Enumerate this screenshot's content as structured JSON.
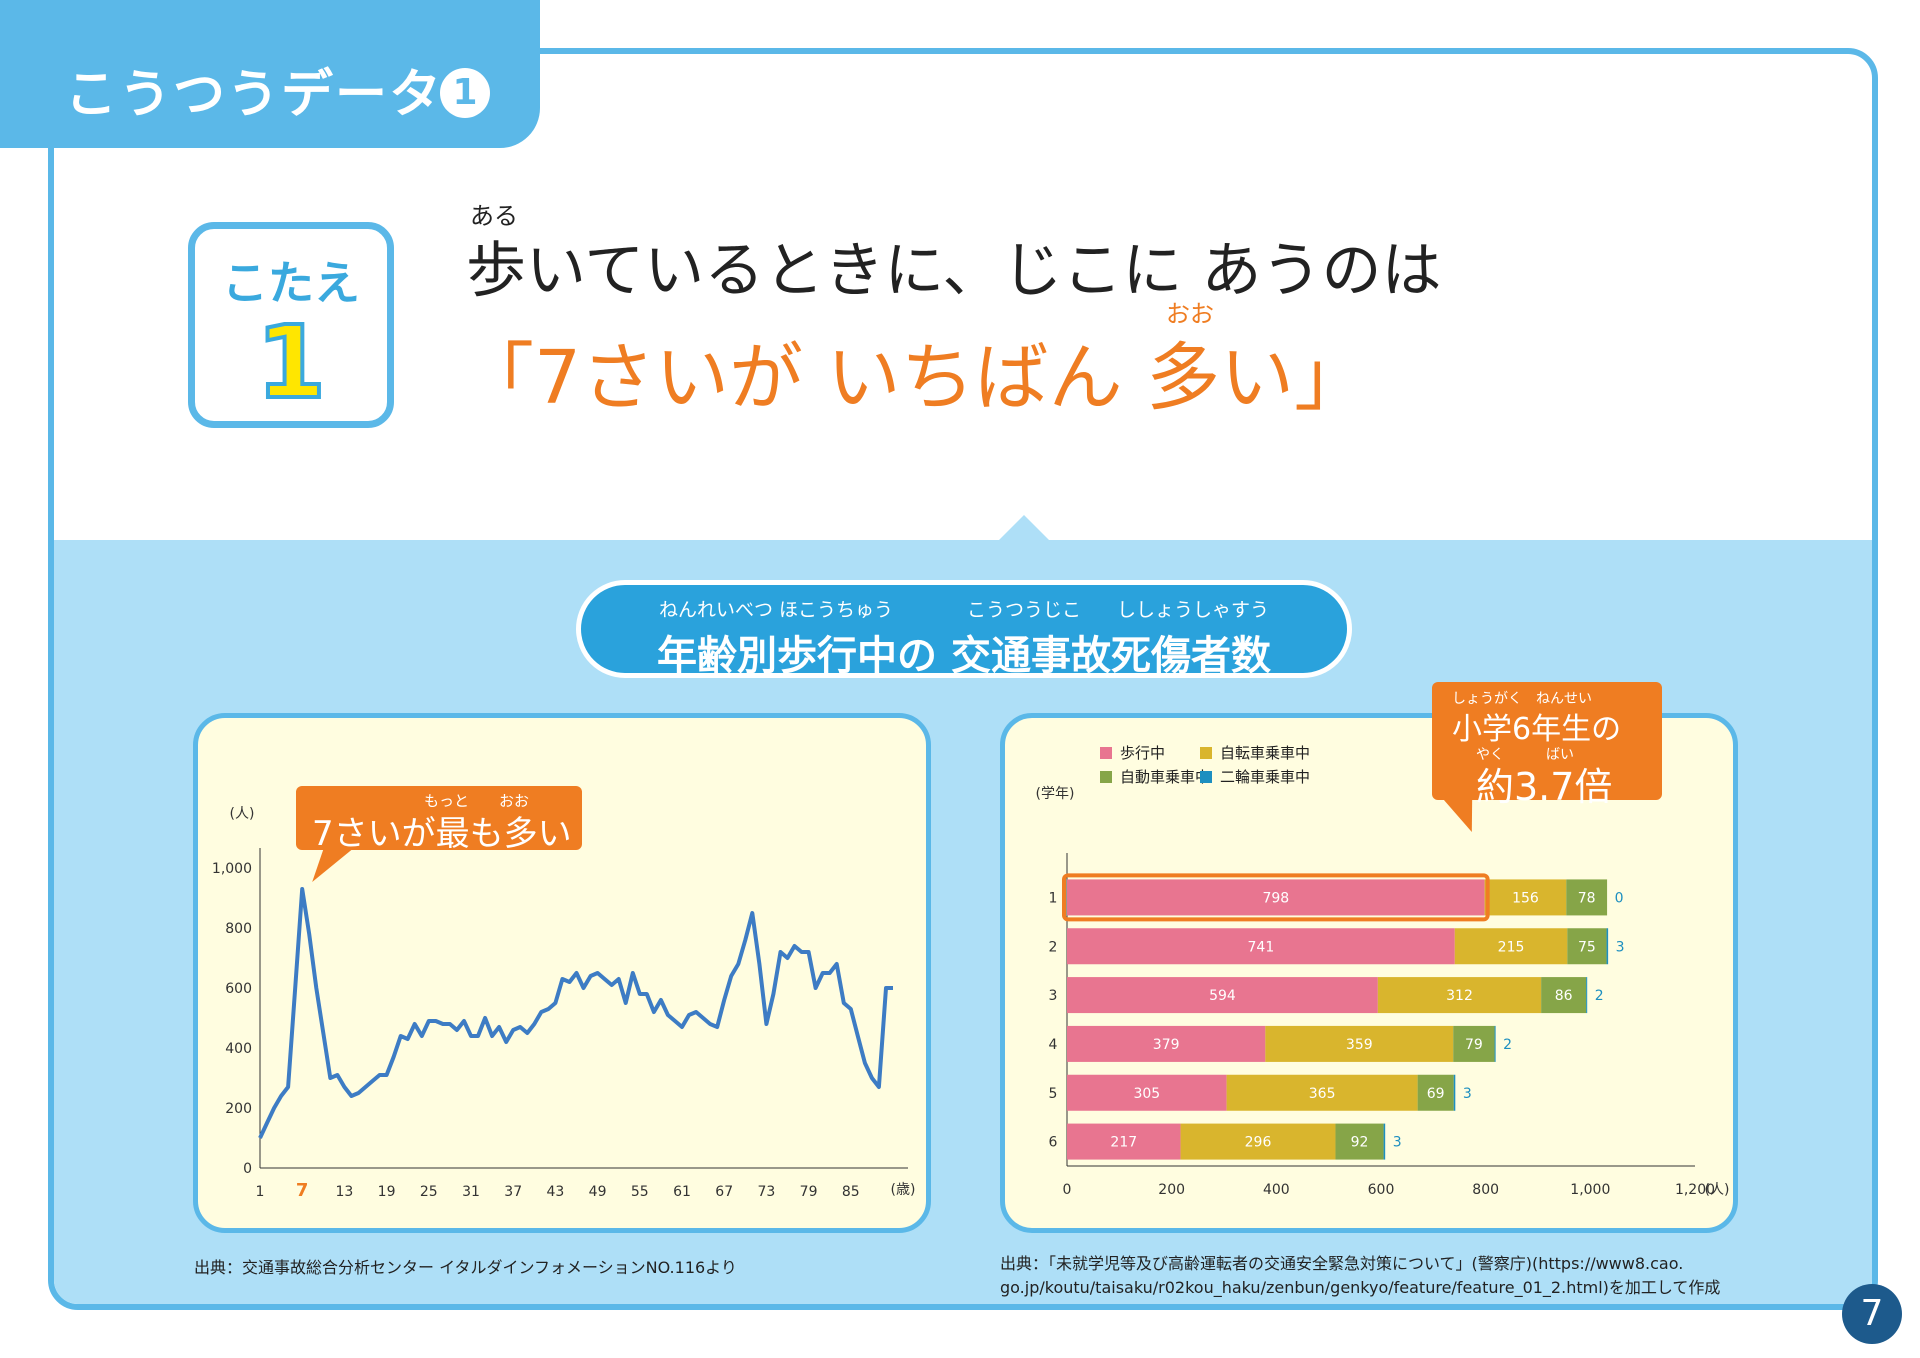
{
  "tab": {
    "title": "こうつうデータ",
    "number": "1"
  },
  "answer": {
    "label": "こたえ",
    "number": "1"
  },
  "headline": {
    "ruby_aru": "ある",
    "line1": "歩いているときに、じこに あうのは",
    "ruby_oo": "おお",
    "line2": "「7さいが いちばん 多い」"
  },
  "section": {
    "title": "年齢別歩行中の 交通事故死傷者数",
    "ruby_1": "ねんれいべつ ほこうちゅう",
    "ruby_2": "こうつうじこ",
    "ruby_3": "ししょうしゃすう"
  },
  "left_chart": {
    "callout_ruby": "もっと　　おお",
    "callout": "7さいが最も多い",
    "source": "出典：交通事故総合分析センター イタルダインフォメーションNO.116より"
  },
  "right_chart": {
    "callout_ruby1": "しょうがく　ねんせい",
    "callout_line1": "小学6年生の",
    "callout_ruby2": "やく　　　ばい",
    "callout_line2": "約3.7倍",
    "source_line1": "出典：「未就学児等及び高齢運転者の交通安全緊急対策について」(警察庁)(https://www8.cao.",
    "source_line2": "go.jp/koutu/taisaku/r02kou_haku/zenbun/genkyo/feature/feature_01_2.html)を加工して作成"
  },
  "page_number": "7",
  "chart_data": [
    {
      "type": "line",
      "ylabel": "(人)",
      "xlabel": "(歳)",
      "ylim": [
        0,
        1000
      ],
      "yticks": [
        "0",
        "200",
        "400",
        "600",
        "800",
        "1,000"
      ],
      "xticks": [
        "1",
        "7",
        "13",
        "19",
        "25",
        "31",
        "37",
        "43",
        "49",
        "55",
        "61",
        "67",
        "73",
        "79",
        "85"
      ],
      "highlight_tick": "7",
      "series_color": "#3d7cc4",
      "x": [
        1,
        2,
        3,
        4,
        5,
        6,
        7,
        8,
        9,
        10,
        11,
        12,
        13,
        14,
        15,
        16,
        17,
        18,
        19,
        20,
        21,
        22,
        23,
        24,
        25,
        26,
        27,
        28,
        29,
        30,
        31,
        32,
        33,
        34,
        35,
        36,
        37,
        38,
        39,
        40,
        41,
        42,
        43,
        44,
        45,
        46,
        47,
        48,
        49,
        50,
        51,
        52,
        53,
        54,
        55,
        56,
        57,
        58,
        59,
        60,
        61,
        62,
        63,
        64,
        65,
        66,
        67,
        68,
        69,
        70,
        71,
        72,
        73,
        74,
        75,
        76,
        77,
        78,
        79,
        80,
        81,
        82,
        83,
        84,
        85,
        86,
        87,
        88,
        89,
        90,
        91
      ],
      "y": [
        100,
        150,
        200,
        240,
        270,
        600,
        930,
        780,
        600,
        450,
        300,
        310,
        270,
        240,
        250,
        270,
        290,
        310,
        310,
        370,
        440,
        430,
        480,
        440,
        490,
        490,
        480,
        480,
        460,
        490,
        440,
        440,
        500,
        440,
        470,
        420,
        460,
        470,
        450,
        480,
        520,
        530,
        550,
        630,
        620,
        650,
        600,
        640,
        650,
        630,
        610,
        630,
        550,
        650,
        580,
        580,
        520,
        560,
        510,
        490,
        470,
        510,
        520,
        500,
        480,
        470,
        560,
        640,
        680,
        760,
        850,
        680,
        480,
        580,
        720,
        700,
        740,
        720,
        720,
        600,
        650,
        650,
        680,
        550,
        530,
        440,
        350,
        300,
        270,
        600,
        600
      ]
    },
    {
      "type": "bar",
      "orientation": "horizontal",
      "stacked": true,
      "ylabel": "(学年)",
      "xlabel": "(人)",
      "xlim": [
        0,
        1200
      ],
      "xticks": [
        "0",
        "200",
        "400",
        "600",
        "800",
        "1,000",
        "1,200"
      ],
      "categories": [
        "1",
        "2",
        "3",
        "4",
        "5",
        "6"
      ],
      "series": [
        {
          "name": "歩行中",
          "color": "#e87590",
          "values": [
            798,
            741,
            594,
            379,
            305,
            217
          ]
        },
        {
          "name": "自転車乗車中",
          "color": "#d9b52d",
          "values": [
            156,
            215,
            312,
            359,
            365,
            296
          ]
        },
        {
          "name": "自動車乗車中",
          "color": "#86a548",
          "values": [
            78,
            75,
            86,
            79,
            69,
            92
          ]
        },
        {
          "name": "二輪車乗車中",
          "color": "#1d8fc0",
          "values": [
            0,
            3,
            2,
            2,
            3,
            3
          ]
        }
      ],
      "highlight_row": "1"
    }
  ]
}
